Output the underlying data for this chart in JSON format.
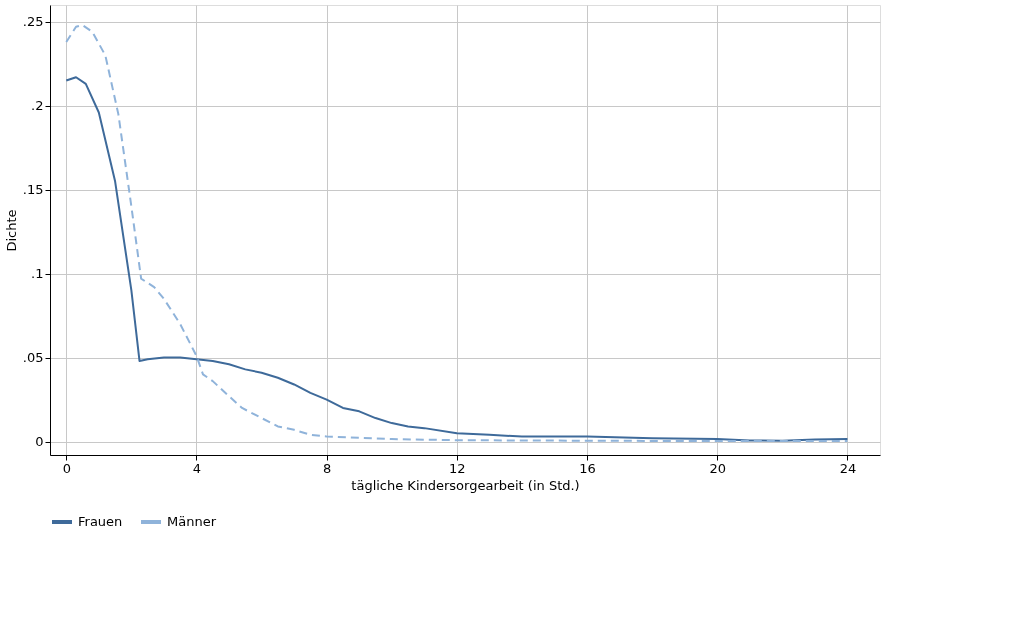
{
  "chart_data": {
    "type": "line",
    "xlabel": "tägliche Kindersorgearbeit (in Std.)",
    "ylabel": "Dichte",
    "xlim": [
      -0.5,
      25
    ],
    "xticks": [
      0,
      4,
      8,
      12,
      16,
      20,
      24
    ],
    "ylim": [
      -0.008,
      0.26
    ],
    "yticks": [
      {
        "value": 0,
        "label": "0"
      },
      {
        "value": 0.05,
        "label": ".05"
      },
      {
        "value": 0.1,
        "label": ".1"
      },
      {
        "value": 0.15,
        "label": ".15"
      },
      {
        "value": 0.2,
        "label": ".2"
      },
      {
        "value": 0.25,
        "label": ".25"
      }
    ],
    "grid": true,
    "legend": "bottom",
    "marker": "none",
    "series": [
      {
        "name": "Frauen",
        "color": "#3e6a9a",
        "line_style": "solid",
        "x": [
          0,
          0.3,
          0.6,
          1.0,
          1.5,
          2.0,
          2.25,
          2.5,
          3.0,
          3.5,
          4.0,
          4.5,
          5.0,
          5.5,
          6.0,
          6.5,
          7.0,
          7.5,
          8,
          8.5,
          9,
          9.5,
          10,
          10.5,
          11,
          12,
          13,
          14,
          16,
          18,
          20,
          21,
          22,
          23,
          24
        ],
        "values": [
          0.215,
          0.217,
          0.213,
          0.196,
          0.155,
          0.09,
          0.048,
          0.049,
          0.05,
          0.05,
          0.049,
          0.048,
          0.046,
          0.043,
          0.041,
          0.038,
          0.034,
          0.029,
          0.025,
          0.02,
          0.018,
          0.014,
          0.011,
          0.009,
          0.008,
          0.005,
          0.004,
          0.003,
          0.003,
          0.002,
          0.0015,
          0.0007,
          0.0005,
          0.0012,
          0.0015
        ]
      },
      {
        "name": "Männer",
        "color": "#8fb3da",
        "line_style": "dashed",
        "x": [
          0,
          0.3,
          0.5,
          0.8,
          1.2,
          1.6,
          2.0,
          2.3,
          2.7,
          3.0,
          3.5,
          4.0,
          4.2,
          4.5,
          5,
          5.4,
          6,
          6.5,
          7,
          7.5,
          8,
          10,
          12,
          16,
          20,
          24
        ],
        "values": [
          0.238,
          0.247,
          0.248,
          0.244,
          0.23,
          0.195,
          0.14,
          0.097,
          0.092,
          0.085,
          0.07,
          0.051,
          0.04,
          0.036,
          0.027,
          0.02,
          0.014,
          0.009,
          0.007,
          0.004,
          0.003,
          0.0015,
          0.0008,
          0.0005,
          0.0003,
          0.0003
        ]
      }
    ]
  }
}
